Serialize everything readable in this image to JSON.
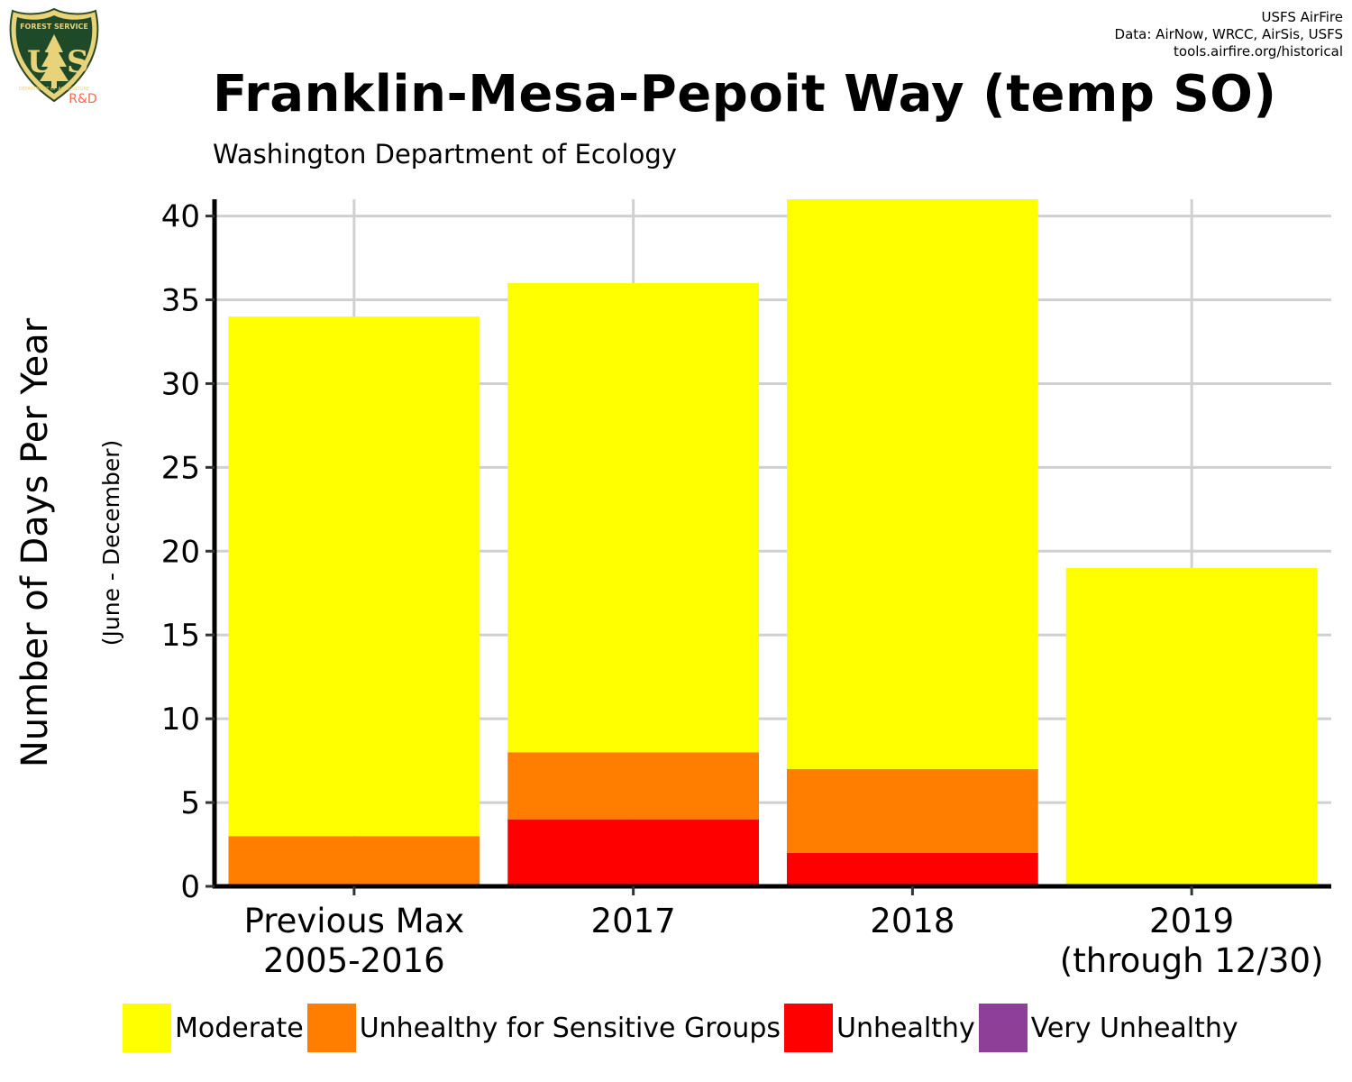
{
  "logo": {
    "top_text": "FOREST SERVICE",
    "letters_left": "U",
    "letters_right": "S",
    "bottom_text": "DEPARTMENT OF AGRICULTURE",
    "badge": "R&D",
    "icon": "forest-service-shield-icon"
  },
  "credits": {
    "line1": "USFS AirFire",
    "line2": "Data: AirNow, WRCC, AirSis, USFS",
    "line3": "tools.airfire.org/historical"
  },
  "chart_data": {
    "type": "bar",
    "stacked": true,
    "title": "Franklin-Mesa-Pepoit Way (temp SO)",
    "subtitle": "Washington Department of Ecology",
    "ylabel": "Number of Days Per Year",
    "ylabel_sub": "(June - December)",
    "xlabel": "",
    "categories": [
      [
        "Previous Max",
        "2005-2016"
      ],
      [
        "2017"
      ],
      [
        "2018"
      ],
      [
        "2019",
        "(through 12/30)"
      ]
    ],
    "ylim": [
      0,
      41
    ],
    "yticks": [
      0,
      5,
      10,
      15,
      20,
      25,
      30,
      35,
      40
    ],
    "grid": true,
    "legend_position": "bottom",
    "series": [
      {
        "name": "Very Unhealthy",
        "color": "#8e3f98",
        "values": [
          0,
          0,
          0,
          0
        ]
      },
      {
        "name": "Unhealthy",
        "color": "#ff0000",
        "values": [
          0,
          4,
          2,
          0
        ]
      },
      {
        "name": "Unhealthy for Sensitive Groups",
        "color": "#ff7e00",
        "values": [
          3,
          4,
          5,
          0
        ]
      },
      {
        "name": "Moderate",
        "color": "#ffff00",
        "values": [
          31,
          28,
          34,
          19
        ]
      }
    ],
    "legend_order": [
      "Moderate",
      "Unhealthy for Sensitive Groups",
      "Unhealthy",
      "Very Unhealthy"
    ]
  }
}
